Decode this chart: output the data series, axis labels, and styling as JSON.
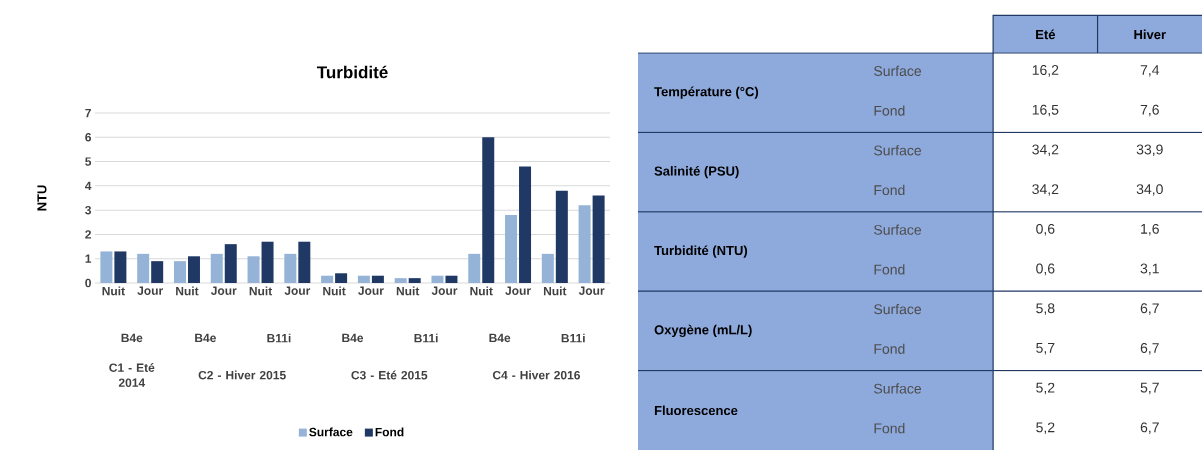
{
  "chart_data": [
    {
      "type": "bar",
      "title": "Turbidité",
      "ylabel": "NTU",
      "categories": [
        "Nuit",
        "Jour",
        "Nuit",
        "Jour",
        "Nuit",
        "Jour",
        "Nuit",
        "Jour",
        "Nuit",
        "Jour",
        "Nuit",
        "Jour",
        "Nuit",
        "Jour"
      ],
      "annotations": [
        "B4e",
        "B4e",
        "B11i",
        "B4e",
        "B11i",
        "B4e",
        "B11i",
        "C1 - Eté 2014",
        "C2 - Hiver 2015",
        "C3 - Eté 2015",
        "C4 - Hiver 2016"
      ],
      "series": [
        {
          "name": "Surface",
          "color": "#95b3d7",
          "values": [
            1.3,
            1.2,
            0.9,
            1.2,
            1.1,
            1.2,
            0.3,
            0.3,
            0.2,
            0.3,
            1.2,
            2.8,
            1.2,
            3.2
          ]
        },
        {
          "name": "Fond",
          "color": "#1f3864",
          "values": [
            1.3,
            0.9,
            1.1,
            1.6,
            1.7,
            1.7,
            0.4,
            0.3,
            0.2,
            0.3,
            6.0,
            4.8,
            3.8,
            3.6
          ]
        }
      ],
      "ylim": [
        0,
        7
      ],
      "yticks": [
        0,
        1,
        2,
        3,
        4,
        5,
        6,
        7
      ],
      "grid": "y",
      "legend": "bottom"
    },
    {
      "type": "other",
      "categories": [
        "Eté",
        "Hiver"
      ],
      "y_categories": [
        "Température (°C)",
        null,
        "Salinité (PSU)",
        null,
        "Turbidité (NTU)",
        null,
        "Oxygène (mL/L)",
        null,
        "Fluorescence",
        null
      ],
      "y2_categories": [
        "Surface",
        "Fond",
        "Surface",
        "Fond",
        "Surface",
        "Fond",
        "Surface",
        "Fond",
        "Surface",
        "Fond"
      ],
      "cell_labels": [
        [
          "16,2",
          "7,4"
        ],
        [
          "16,5",
          "7,6"
        ],
        [
          "34,2",
          "33,9"
        ],
        [
          "34,2",
          "34,0"
        ],
        [
          "0,6",
          "1,6"
        ],
        [
          "0,6",
          "3,1"
        ],
        [
          "5,8",
          "6,7"
        ],
        [
          "5,7",
          "6,7"
        ],
        [
          "5,2",
          "5,7"
        ],
        [
          "5,2",
          "6,7"
        ]
      ]
    }
  ]
}
